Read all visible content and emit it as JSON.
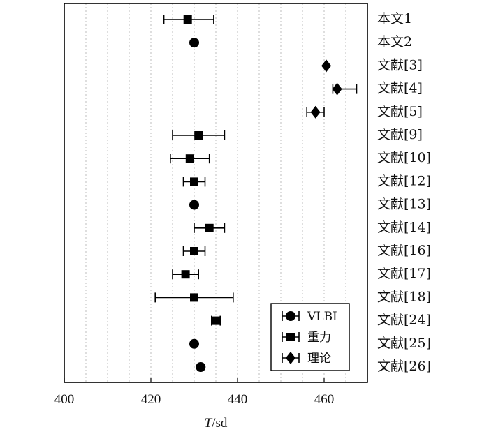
{
  "chart_data": {
    "type": "scatter",
    "orientation": "horizontal-errorbar",
    "xlabel_italic": "T",
    "xlabel_rest": "/sd",
    "xlim": [
      400,
      470
    ],
    "xticks": [
      400,
      420,
      440,
      460
    ],
    "grid": "vertical-dotted",
    "legend_position": "bottom-right",
    "legend": [
      {
        "name": "VLBI",
        "marker": "circle"
      },
      {
        "name": "重力",
        "marker": "square"
      },
      {
        "name": "理论",
        "marker": "diamond"
      }
    ],
    "categories": [
      "本文1",
      "本文2",
      "文献[3]",
      "文献[4]",
      "文献[5]",
      "文献[9]",
      "文献[10]",
      "文献[12]",
      "文献[13]",
      "文献[14]",
      "文献[16]",
      "文献[17]",
      "文献[18]",
      "文献[24]",
      "文献[25]",
      "文献[26]"
    ],
    "points": [
      {
        "category": "本文1",
        "value": 428.5,
        "err_low": 423,
        "err_high": 434.5,
        "marker": "square"
      },
      {
        "category": "本文2",
        "value": 430,
        "err_low": null,
        "err_high": null,
        "marker": "circle"
      },
      {
        "category": "文献[3]",
        "value": 460.5,
        "err_low": null,
        "err_high": null,
        "marker": "diamond"
      },
      {
        "category": "文献[4]",
        "value": 463,
        "err_low": 462,
        "err_high": 467.5,
        "marker": "diamond"
      },
      {
        "category": "文献[5]",
        "value": 458,
        "err_low": 456,
        "err_high": 460,
        "marker": "diamond"
      },
      {
        "category": "文献[9]",
        "value": 431,
        "err_low": 425,
        "err_high": 437,
        "marker": "square"
      },
      {
        "category": "文献[10]",
        "value": 429,
        "err_low": 424.5,
        "err_high": 433.5,
        "marker": "square"
      },
      {
        "category": "文献[12]",
        "value": 430,
        "err_low": 427.5,
        "err_high": 432.5,
        "marker": "square"
      },
      {
        "category": "文献[13]",
        "value": 430,
        "err_low": null,
        "err_high": null,
        "marker": "circle"
      },
      {
        "category": "文献[14]",
        "value": 433.5,
        "err_low": 430,
        "err_high": 437,
        "marker": "square"
      },
      {
        "category": "文献[16]",
        "value": 430,
        "err_low": 427.5,
        "err_high": 432.5,
        "marker": "square"
      },
      {
        "category": "文献[17]",
        "value": 428,
        "err_low": 425,
        "err_high": 431,
        "marker": "square"
      },
      {
        "category": "文献[18]",
        "value": 430,
        "err_low": 421,
        "err_high": 439,
        "marker": "square"
      },
      {
        "category": "文献[24]",
        "value": 435,
        "err_low": 434,
        "err_high": 436,
        "marker": "square"
      },
      {
        "category": "文献[25]",
        "value": 430,
        "err_low": null,
        "err_high": null,
        "marker": "circle"
      },
      {
        "category": "文献[26]",
        "value": 431.5,
        "err_low": null,
        "err_high": null,
        "marker": "circle"
      }
    ]
  }
}
